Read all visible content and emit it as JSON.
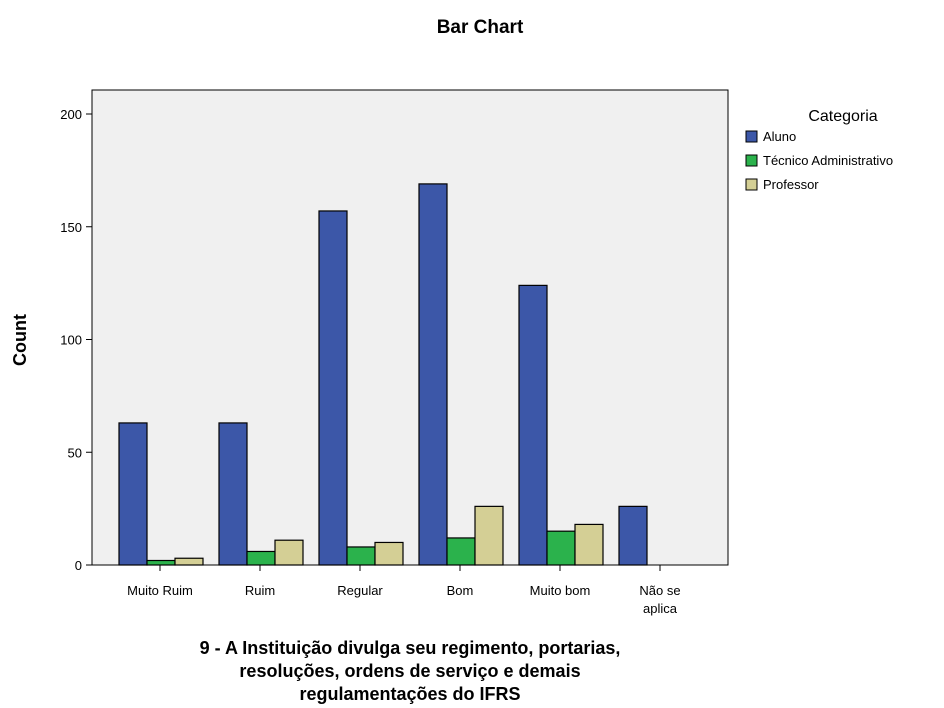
{
  "chart_data": {
    "type": "bar",
    "title": "Bar Chart",
    "ylabel": "Count",
    "xlabel_lines": [
      "9 - A Instituição divulga seu regimento, portarias,",
      "resoluções, ordens de serviço e demais",
      "regulamentações do IFRS"
    ],
    "categories": [
      [
        "Muito Ruim"
      ],
      [
        "Ruim"
      ],
      [
        "Regular"
      ],
      [
        "Bom"
      ],
      [
        "Muito bom"
      ],
      [
        "Não se",
        "aplica"
      ]
    ],
    "yticks": [
      0,
      50,
      100,
      150,
      200
    ],
    "ylim": [
      0,
      200
    ],
    "grid": false,
    "legend": {
      "title": "Categoria",
      "position": "right"
    },
    "series": [
      {
        "name": "Aluno",
        "color": "#3c57a8",
        "values": [
          63,
          63,
          157,
          169,
          124,
          26
        ]
      },
      {
        "name": "Técnico Administrativo",
        "color": "#2bb24c",
        "values": [
          2,
          6,
          8,
          12,
          15,
          null
        ]
      },
      {
        "name": "Professor",
        "color": "#d4cf95",
        "values": [
          3,
          11,
          10,
          26,
          18,
          null
        ]
      }
    ],
    "plot_background": "#f0f0f0"
  }
}
